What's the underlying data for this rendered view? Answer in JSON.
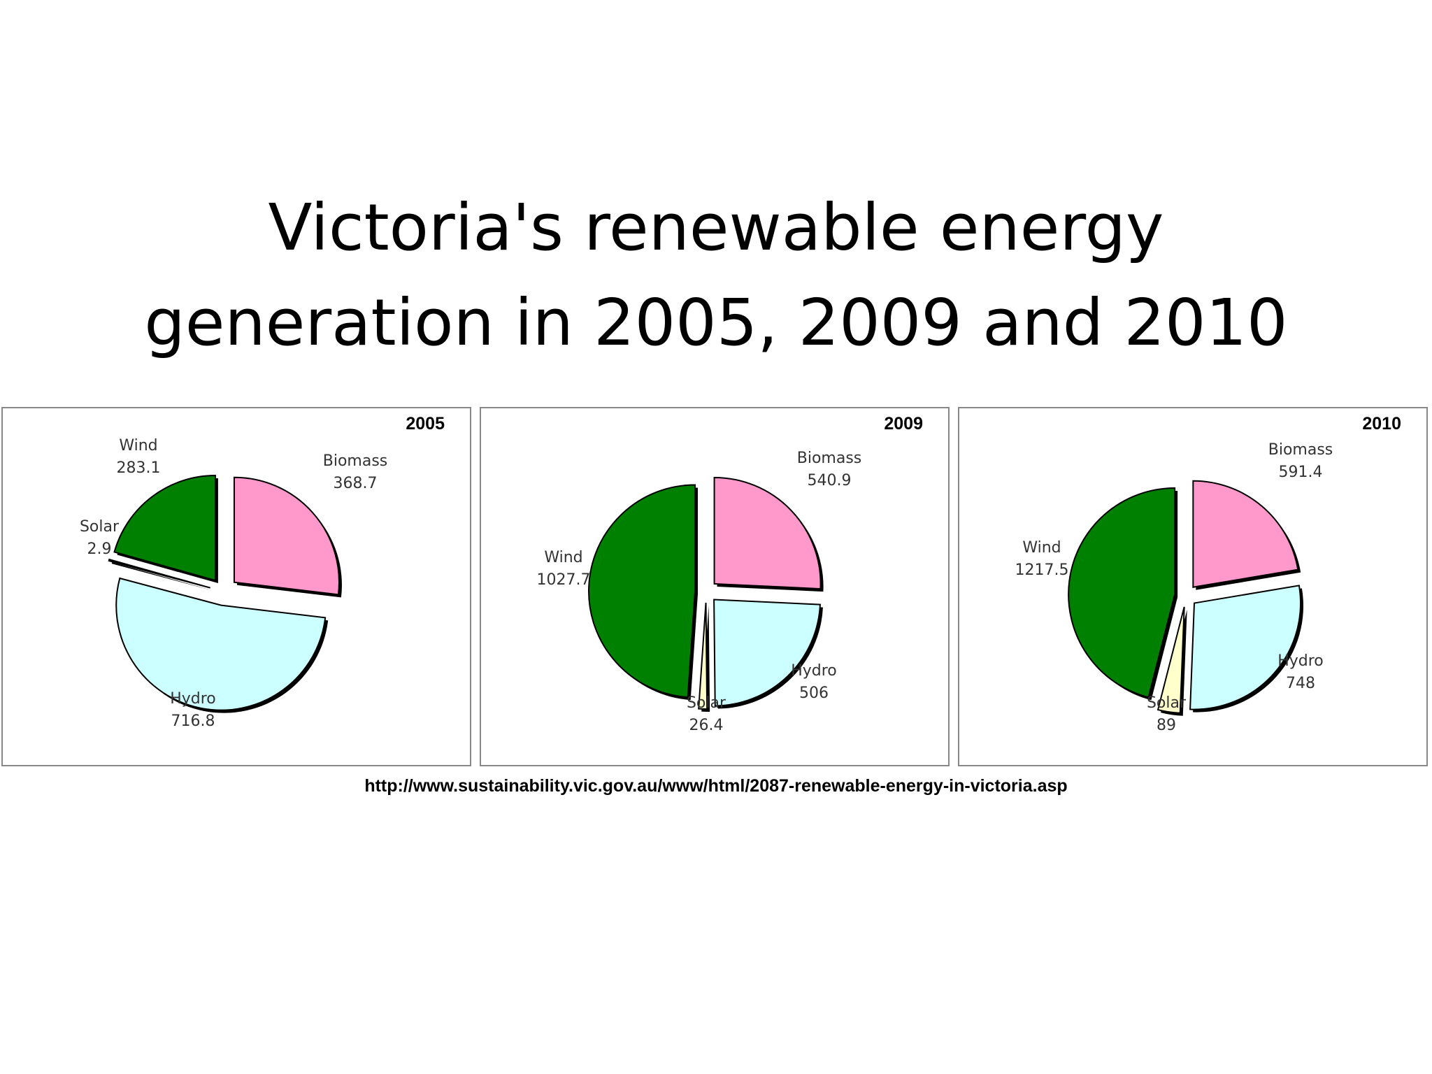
{
  "title": {
    "line1": "Victoria's renewable energy",
    "line2": "generation in 2005, 2009 and 2010"
  },
  "source": "http://www.sustainability.vic.gov.au/www/html/2087-renewable-energy-in-victoria.asp",
  "colors": {
    "Biomass": "#ff99cc",
    "Hydro": "#ccffff",
    "Solar": "#ffffcc",
    "Wind": "#008000"
  },
  "chart_data": [
    {
      "type": "pie",
      "title": "2005",
      "slices": [
        {
          "label": "Biomass",
          "value": "368.7"
        },
        {
          "label": "Hydro",
          "value": "716.8"
        },
        {
          "label": "Solar",
          "value": "2.9"
        },
        {
          "label": "Wind",
          "value": "283.1"
        }
      ]
    },
    {
      "type": "pie",
      "title": "2009",
      "slices": [
        {
          "label": "Biomass",
          "value": "540.9"
        },
        {
          "label": "Hydro",
          "value": "506"
        },
        {
          "label": "Solar",
          "value": "26.4"
        },
        {
          "label": "Wind",
          "value": "1027.7"
        }
      ]
    },
    {
      "type": "pie",
      "title": "2010",
      "slices": [
        {
          "label": "Biomass",
          "value": "591.4"
        },
        {
          "label": "Hydro",
          "value": "748"
        },
        {
          "label": "Solar",
          "value": "89"
        },
        {
          "label": "Wind",
          "value": "1217.5"
        }
      ]
    }
  ]
}
